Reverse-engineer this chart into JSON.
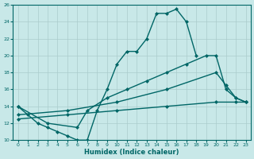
{
  "xlabel": "Humidex (Indice chaleur)",
  "xlim": [
    -0.5,
    23.5
  ],
  "ylim": [
    10,
    26
  ],
  "xticks": [
    0,
    1,
    2,
    3,
    4,
    5,
    6,
    7,
    8,
    9,
    10,
    11,
    12,
    13,
    14,
    15,
    16,
    17,
    18,
    19,
    20,
    21,
    22,
    23
  ],
  "yticks": [
    10,
    12,
    14,
    16,
    18,
    20,
    22,
    24,
    26
  ],
  "background_color": "#c8e8e8",
  "grid_color": "#aacccc",
  "line_color": "#006666",
  "line_width": 1.0,
  "marker": "D",
  "marker_size": 2.0,
  "lines": [
    {
      "x": [
        0,
        1,
        2,
        3,
        4,
        5,
        6,
        7,
        8,
        9,
        10,
        11,
        12,
        13,
        14,
        15,
        16,
        17,
        18
      ],
      "y": [
        14,
        13,
        12,
        11.5,
        11,
        10.5,
        10,
        10,
        13.5,
        16,
        19,
        20.5,
        20.5,
        22,
        25,
        25,
        25.5,
        24,
        20
      ]
    },
    {
      "x": [
        0,
        3,
        6,
        7,
        9,
        11,
        13,
        15,
        17,
        19,
        20,
        21,
        22,
        23
      ],
      "y": [
        14,
        12,
        11.5,
        13.5,
        15,
        16,
        17,
        18,
        19,
        20,
        20,
        16,
        15,
        14.5
      ]
    },
    {
      "x": [
        0,
        5,
        10,
        15,
        20,
        21,
        22,
        23
      ],
      "y": [
        13,
        13.5,
        14.5,
        16,
        18,
        16.5,
        15,
        14.5
      ]
    },
    {
      "x": [
        0,
        5,
        10,
        15,
        20,
        22,
        23
      ],
      "y": [
        12.5,
        13,
        13.5,
        14,
        14.5,
        14.5,
        14.5
      ]
    }
  ]
}
